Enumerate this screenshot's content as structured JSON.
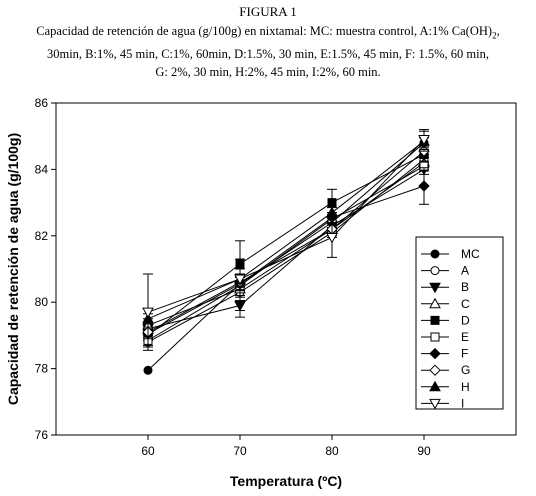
{
  "figure": {
    "label": "FIGURA 1",
    "caption_line1_pre": "Capacidad de retención de agua (g/100g) en nixtamal: MC: muestra control, A:1% Ca(OH)",
    "caption_line1_sub": "2",
    "caption_line1_post": ",",
    "caption_line2": "30min, B:1%,  45 min, C:1%, 60min, D:1.5%, 30 min, E:1.5%, 45 min, F: 1.5%, 60 min,",
    "caption_line3": "G: 2%, 30 min, H:2%, 45 min, I:2%, 60 min."
  },
  "chart_data": {
    "type": "line",
    "xlabel": "Temperatura (ºC)",
    "ylabel": "Capacidad de retención de agua (g/100g)",
    "xlim": [
      50,
      100
    ],
    "ylim": [
      76,
      86
    ],
    "xticks": [
      60,
      70,
      80,
      90
    ],
    "yticks": [
      76,
      78,
      80,
      82,
      84,
      86
    ],
    "grid": false,
    "legend_position": "right",
    "x": [
      60,
      70,
      80,
      90
    ],
    "series": [
      {
        "name": "MC",
        "marker": "circle-filled",
        "values": [
          77.95,
          80.55,
          82.4,
          84.8
        ],
        "errors": [
          0.0,
          0.2,
          0.15,
          0.15
        ]
      },
      {
        "name": "A",
        "marker": "circle-open",
        "values": [
          78.8,
          80.3,
          82.1,
          84.3
        ],
        "errors": [
          0.15,
          0.15,
          0.15,
          0.15
        ]
      },
      {
        "name": "B",
        "marker": "triangle-down-filled",
        "values": [
          79.2,
          79.9,
          82.3,
          84.0
        ],
        "errors": [
          0.15,
          0.15,
          0.15,
          0.15
        ]
      },
      {
        "name": "C",
        "marker": "triangle-up-open",
        "values": [
          79.3,
          80.4,
          82.2,
          84.2
        ],
        "errors": [
          0.2,
          0.2,
          0.2,
          0.2
        ]
      },
      {
        "name": "D",
        "marker": "square-filled",
        "values": [
          79.0,
          81.15,
          83.0,
          84.45
        ],
        "errors": [
          0.15,
          0.15,
          0.4,
          0.25
        ]
      },
      {
        "name": "E",
        "marker": "square-open",
        "values": [
          78.85,
          80.5,
          82.5,
          84.1
        ],
        "errors": [
          0.15,
          0.15,
          0.15,
          0.15
        ]
      },
      {
        "name": "F",
        "marker": "diamond-filled",
        "values": [
          79.05,
          80.55,
          82.55,
          83.5
        ],
        "errors": [
          0.15,
          0.2,
          0.15,
          0.55
        ]
      },
      {
        "name": "G",
        "marker": "diamond-open",
        "values": [
          79.1,
          80.6,
          82.2,
          84.55
        ],
        "errors": [
          0.15,
          0.15,
          0.15,
          0.2
        ]
      },
      {
        "name": "H",
        "marker": "triangle-up-filled",
        "values": [
          79.5,
          80.7,
          82.7,
          84.85
        ],
        "errors": [
          0.15,
          0.15,
          0.15,
          0.3
        ]
      },
      {
        "name": "I",
        "marker": "triangle-down-open",
        "values": [
          79.7,
          80.7,
          81.95,
          84.9
        ],
        "errors": [
          1.15,
          1.15,
          0.6,
          0.3
        ]
      }
    ]
  }
}
